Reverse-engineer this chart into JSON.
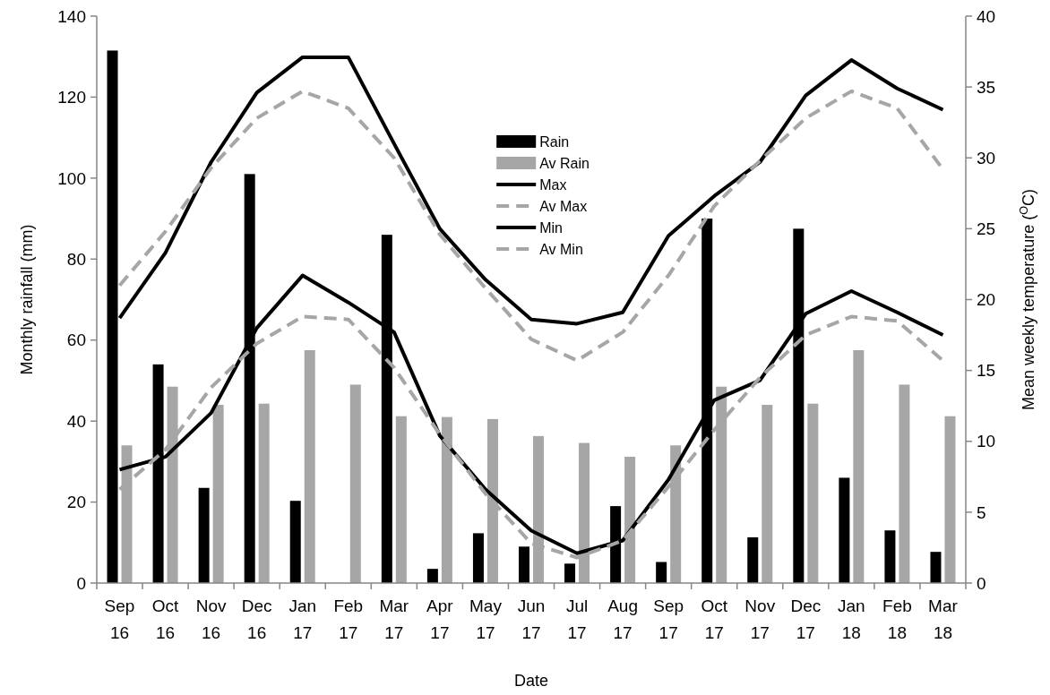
{
  "chart_data": {
    "type": "bar",
    "xlabel": "Date",
    "ylabel": "Monthly rainfall (mm)",
    "y2label": "Mean weekly temperature ($^{O}$C)",
    "categories": [
      "Sep 16",
      "Oct 16",
      "Nov 16",
      "Dec 16",
      "Jan 17",
      "Feb 17",
      "Mar 17",
      "Apr 17",
      "May 17",
      "Jun 17",
      "Jul 17",
      "Aug 17",
      "Sep 17",
      "Oct 17",
      "Nov 17",
      "Dec 17",
      "Jan 18",
      "Feb 18",
      "Mar 18"
    ],
    "ylim": [
      0,
      140
    ],
    "yticks": [
      0,
      20,
      40,
      60,
      80,
      100,
      120,
      140
    ],
    "y2lim": [
      0,
      40
    ],
    "y2ticks": [
      0,
      5,
      10,
      15,
      20,
      25,
      30,
      35,
      40
    ],
    "grid": false,
    "legend": "top",
    "series": [
      {
        "name": "Rain",
        "color": "#000000",
        "values": [
          131.5,
          54,
          23.5,
          101,
          20.3,
          null,
          86,
          3.5,
          12.3,
          9,
          4.8,
          19,
          5.2,
          90,
          11.3,
          87.5,
          26,
          13,
          7.7
        ]
      },
      {
        "name": "Av Rain",
        "color": "#a6a6a6",
        "values": [
          34,
          48.5,
          44,
          44.3,
          57.5,
          49,
          41.2,
          41,
          40.5,
          36.3,
          34.6,
          31.2,
          34,
          48.5,
          44,
          44.3,
          57.5,
          49,
          41.2
        ]
      },
      {
        "name": "Max",
        "type": "line",
        "axis": "y2",
        "line_style": "solid",
        "color": "#000000",
        "values": [
          18.7,
          23.3,
          29.7,
          34.6,
          37.1,
          37.1,
          31,
          25,
          21.4,
          18.6,
          18.3,
          19.1,
          24.5,
          27.3,
          29.7,
          34.4,
          36.9,
          34.9,
          33.4
        ]
      },
      {
        "name": "Av Max",
        "type": "line",
        "axis": "y2",
        "line_style": "dashed",
        "color": "#a6a6a6",
        "values": [
          21,
          24.8,
          29.3,
          32.8,
          34.7,
          33.5,
          30,
          24.6,
          20.8,
          17.2,
          15.7,
          17.7,
          21.7,
          26.6,
          29.8,
          32.8,
          34.7,
          33.5,
          29.2
        ]
      },
      {
        "name": "Min",
        "type": "line",
        "axis": "y2",
        "line_style": "solid",
        "color": "#000000",
        "values": [
          8,
          8.9,
          12,
          18,
          21.7,
          19.8,
          17.7,
          10.4,
          6.6,
          3.7,
          2.1,
          3,
          7.3,
          12.9,
          14.3,
          19,
          20.6,
          19.1,
          17.5
        ]
      },
      {
        "name": "Av Min",
        "type": "line",
        "axis": "y2",
        "line_style": "dashed",
        "color": "#a6a6a6",
        "values": [
          6.6,
          9.4,
          13.8,
          16.9,
          18.8,
          18.6,
          15.2,
          10.5,
          6.3,
          2.8,
          1.8,
          3,
          6.8,
          10.8,
          14.5,
          17.5,
          18.8,
          18.5,
          15.7
        ]
      }
    ]
  }
}
